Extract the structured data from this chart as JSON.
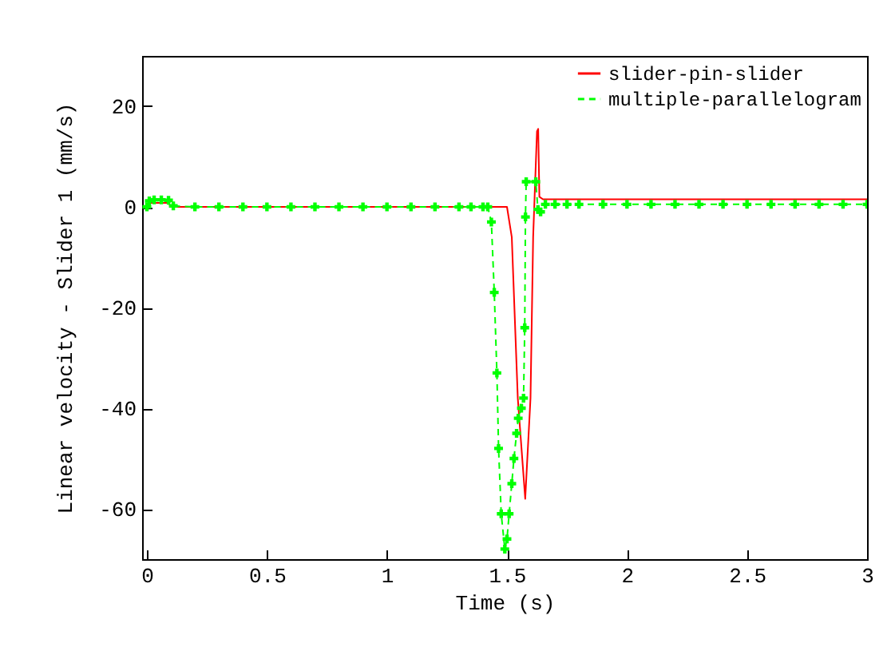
{
  "chart_data": {
    "type": "line",
    "xlabel": "Time (s)",
    "ylabel": "Linear velocity - Slider 1 (mm/s)",
    "xlim": [
      -0.02,
      3
    ],
    "ylim": [
      -70,
      30
    ],
    "xticks": [
      0,
      0.5,
      1,
      1.5,
      2,
      2.5,
      3
    ],
    "yticks": [
      -60,
      -40,
      -20,
      0,
      20
    ],
    "grid": false,
    "legend": "top right",
    "series": [
      {
        "name": "slider-pin-slider",
        "color": "#ff0000",
        "line_style": "solid",
        "marker": "none",
        "x": [
          0,
          0.01,
          0.09,
          0.1,
          0.2,
          1.5,
          1.52,
          1.545,
          1.576,
          1.598,
          1.609,
          1.625,
          1.63,
          1.635,
          1.65,
          3
        ],
        "values": [
          0,
          0.8,
          0.8,
          0,
          0,
          0,
          -6,
          -38,
          -58,
          -38,
          -6,
          15,
          15.5,
          2,
          1.5,
          1.5
        ]
      },
      {
        "name": "multiple-parallelogram",
        "color": "#00ff00",
        "line_style": "dashed",
        "marker": "cross",
        "x": [
          0,
          0.01,
          0.03,
          0.06,
          0.09,
          0.11,
          0.2,
          0.3,
          0.4,
          0.5,
          0.6,
          0.7,
          0.8,
          0.9,
          1.0,
          1.1,
          1.2,
          1.3,
          1.35,
          1.4,
          1.42,
          1.435,
          1.447,
          1.458,
          1.465,
          1.476,
          1.491,
          1.5,
          1.509,
          1.52,
          1.529,
          1.54,
          1.547,
          1.56,
          1.569,
          1.574,
          1.577,
          1.58,
          1.62,
          1.629,
          1.64,
          1.66,
          1.7,
          1.75,
          1.8,
          1.9,
          2.0,
          2.1,
          2.2,
          2.3,
          2.4,
          2.5,
          2.6,
          2.7,
          2.8,
          2.9,
          3
        ],
        "values": [
          0,
          1.2,
          1.4,
          1.4,
          1.3,
          0.2,
          0,
          0,
          0,
          0,
          0,
          0,
          0,
          0,
          0,
          0,
          0,
          0,
          0,
          0,
          0,
          -3,
          -17,
          -33,
          -48,
          -61,
          -68,
          -66,
          -61,
          -55,
          -50,
          -45,
          -42,
          -40,
          -38,
          -24,
          -2,
          5,
          5,
          -0.5,
          -1,
          0.5,
          0.5,
          0.5,
          0.5,
          0.5,
          0.5,
          0.5,
          0.5,
          0.5,
          0.5,
          0.5,
          0.5,
          0.5,
          0.5,
          0.5,
          0.5
        ]
      }
    ]
  }
}
